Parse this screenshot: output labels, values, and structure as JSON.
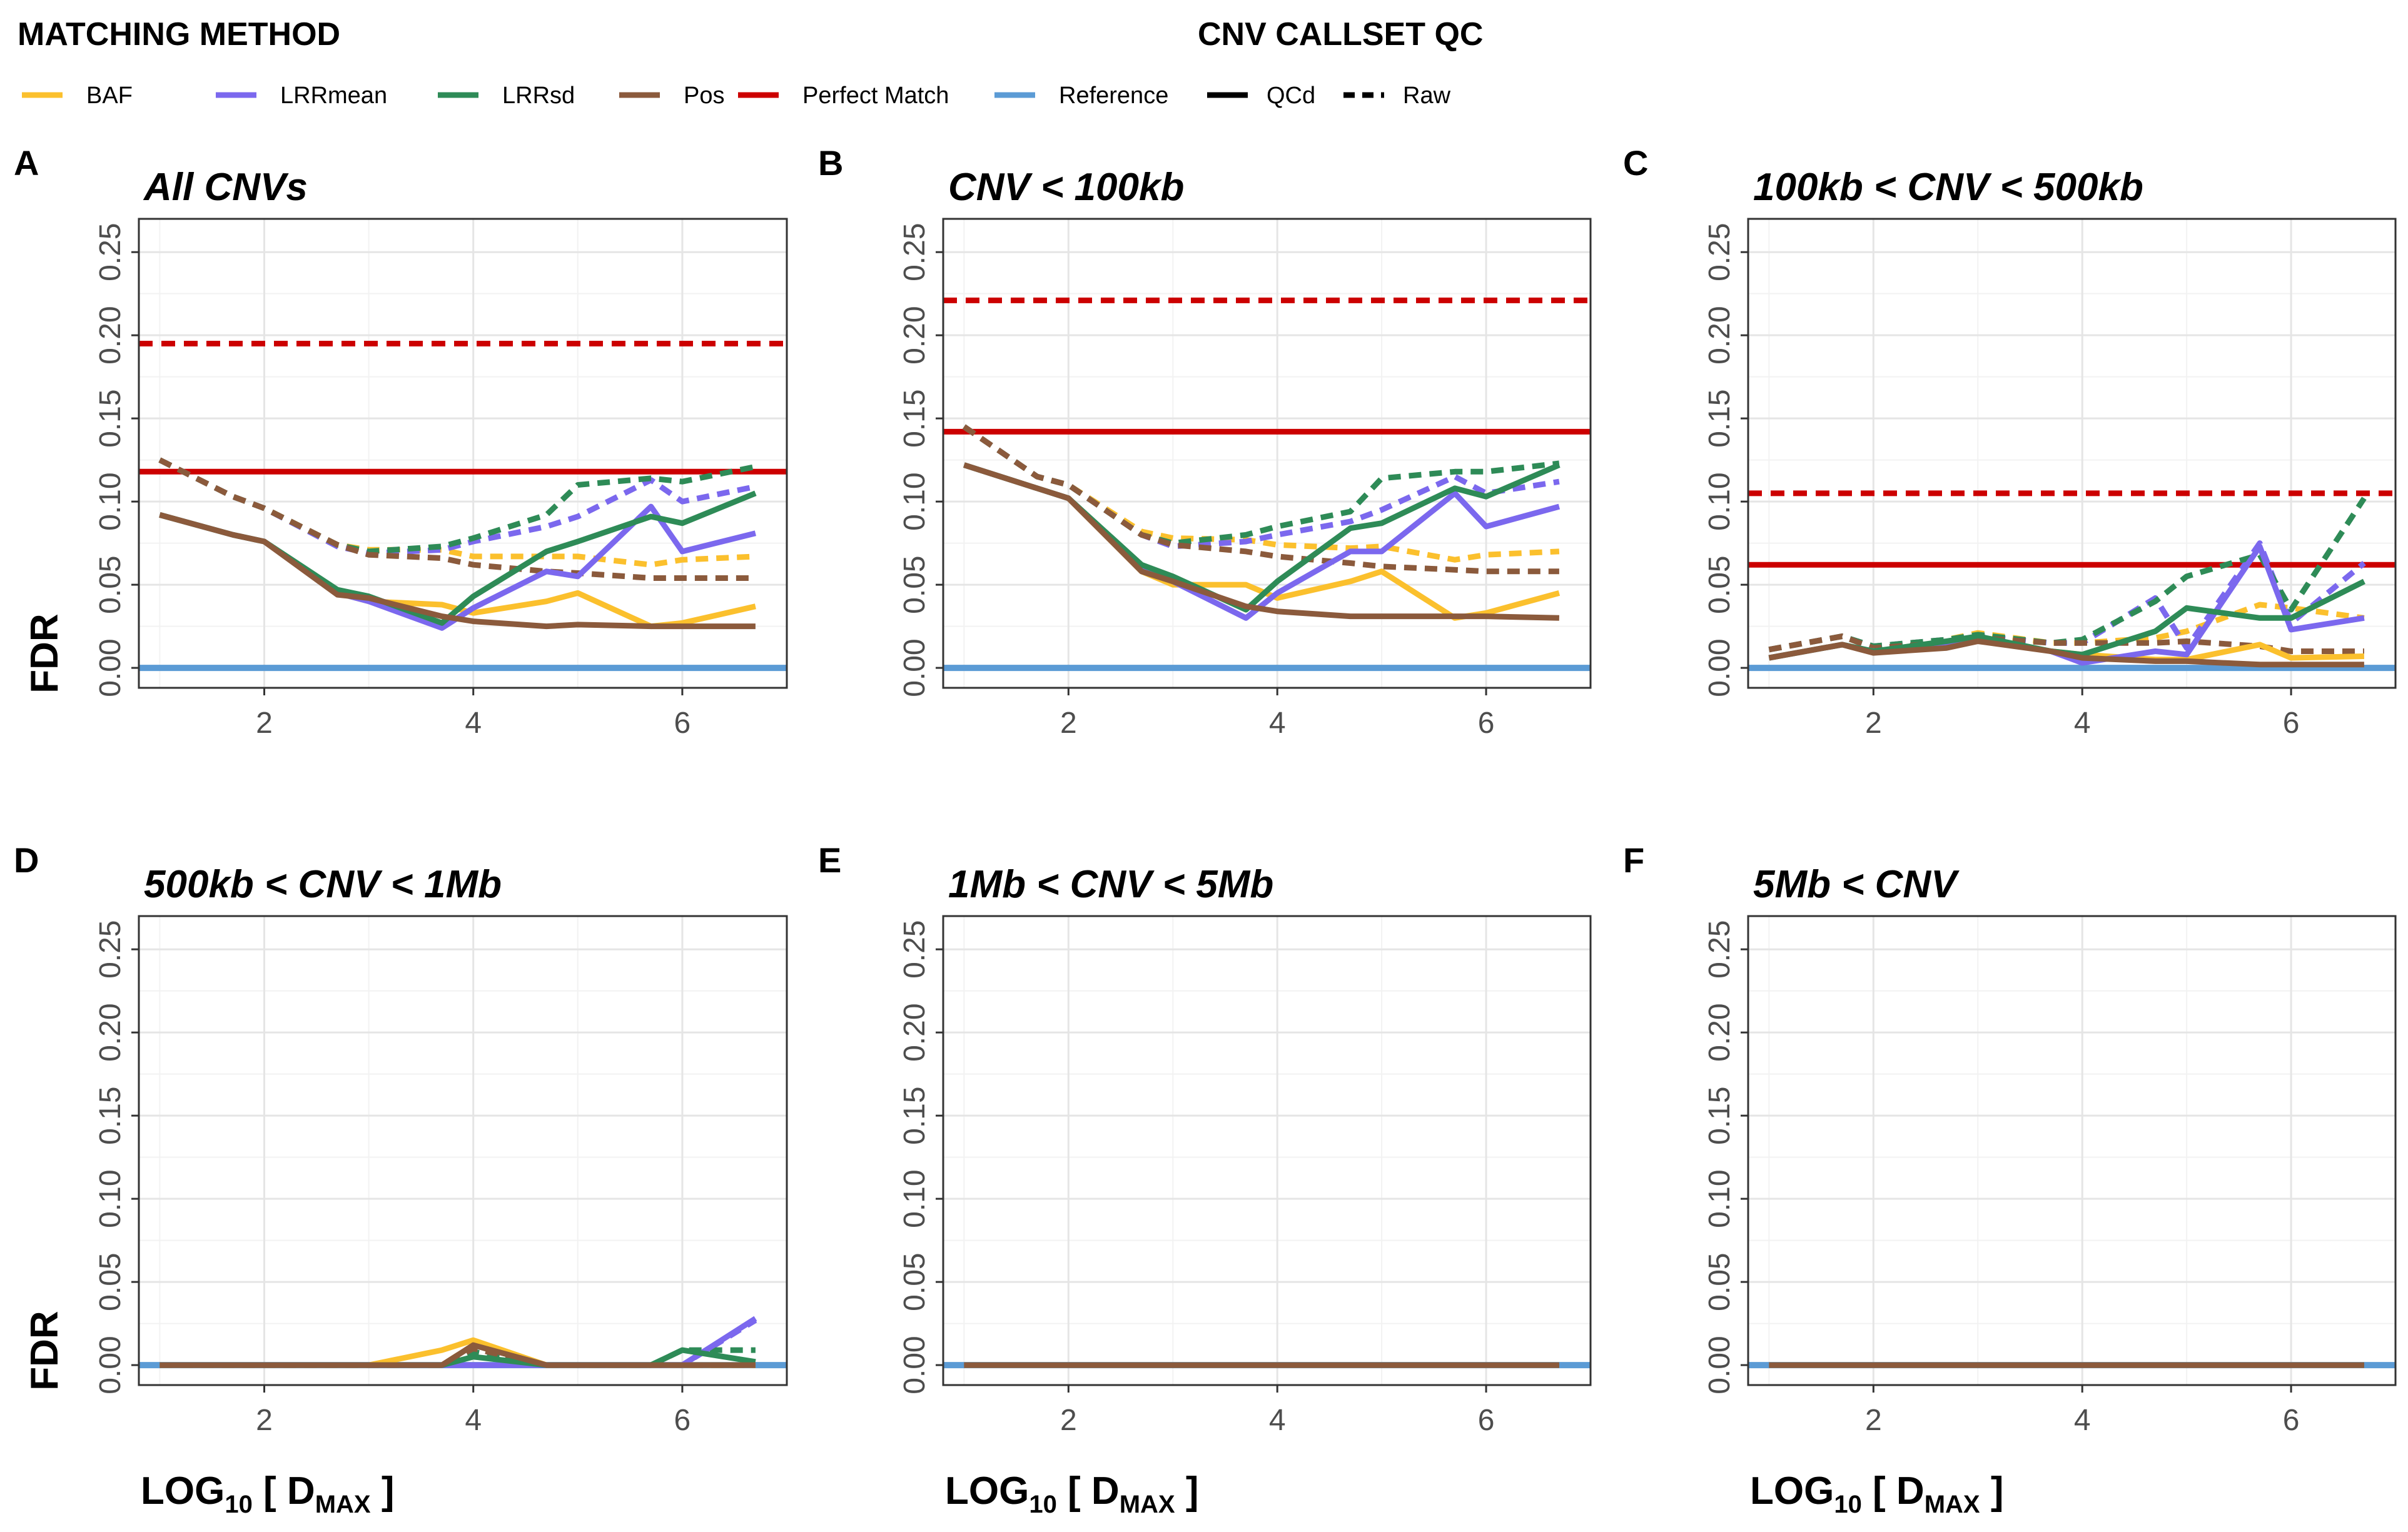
{
  "legend": {
    "method_title": "MATCHING METHOD",
    "qc_title": "CNV CALLSET QC",
    "methods": [
      {
        "label": "BAF",
        "color": "#FBC02D"
      },
      {
        "label": "LRRmean",
        "color": "#7B68EE"
      },
      {
        "label": "LRRsd",
        "color": "#2E8B57"
      },
      {
        "label": "Pos",
        "color": "#8B5A3C"
      },
      {
        "label": "Perfect Match",
        "color": "#CC0000"
      },
      {
        "label": "Reference",
        "color": "#5B9BD5"
      }
    ],
    "qc": [
      {
        "label": "QCd",
        "style": "solid"
      },
      {
        "label": "Raw",
        "style": "dashed"
      }
    ]
  },
  "axis_labels": {
    "ylabel": "FDR",
    "xlabel_main": "LOG",
    "xlabel_sub": "10",
    "xlabel_mid": " [ D",
    "xlabel_sub2": "MAX",
    "xlabel_end": " ]"
  },
  "chart_data": [
    {
      "letter": "A",
      "title": "All CNVs",
      "type": "line",
      "xlim": [
        0.8,
        7.0
      ],
      "ylim": [
        -0.012,
        0.27
      ],
      "xticks": [
        2,
        4,
        6
      ],
      "yticks": [
        0.0,
        0.05,
        0.1,
        0.15,
        0.2,
        0.25
      ],
      "show_ylabel": true,
      "show_xlabel": false,
      "x": [
        1,
        1.7,
        2,
        2.7,
        3,
        3.7,
        4,
        4.7,
        5,
        5.7,
        6,
        6.7
      ],
      "perfect_match": {
        "qcd": 0.118,
        "raw": 0.195
      },
      "reference": 0.0,
      "series": [
        {
          "method": "BAF",
          "qc": "QCd",
          "values": [
            0.092,
            0.08,
            0.076,
            0.045,
            0.04,
            0.038,
            0.033,
            0.04,
            0.045,
            0.025,
            0.027,
            0.037
          ]
        },
        {
          "method": "BAF",
          "qc": "Raw",
          "values": [
            0.125,
            0.103,
            0.096,
            0.074,
            0.071,
            0.071,
            0.067,
            0.067,
            0.067,
            0.062,
            0.065,
            0.067
          ]
        },
        {
          "method": "LRRmean",
          "qc": "QCd",
          "values": [
            0.092,
            0.08,
            0.076,
            0.045,
            0.04,
            0.024,
            0.036,
            0.058,
            0.055,
            0.097,
            0.07,
            0.081
          ]
        },
        {
          "method": "LRRmean",
          "qc": "Raw",
          "values": [
            0.125,
            0.103,
            0.096,
            0.073,
            0.069,
            0.071,
            0.076,
            0.085,
            0.091,
            0.113,
            0.1,
            0.109
          ]
        },
        {
          "method": "LRRsd",
          "qc": "QCd",
          "values": [
            0.092,
            0.08,
            0.076,
            0.047,
            0.043,
            0.027,
            0.043,
            0.07,
            0.076,
            0.091,
            0.087,
            0.105
          ]
        },
        {
          "method": "LRRsd",
          "qc": "Raw",
          "values": [
            0.125,
            0.103,
            0.096,
            0.074,
            0.07,
            0.073,
            0.078,
            0.092,
            0.11,
            0.114,
            0.112,
            0.121
          ]
        },
        {
          "method": "Pos",
          "qc": "QCd",
          "values": [
            0.092,
            0.08,
            0.076,
            0.044,
            0.042,
            0.031,
            0.028,
            0.025,
            0.026,
            0.025,
            0.025,
            0.025
          ]
        },
        {
          "method": "Pos",
          "qc": "Raw",
          "values": [
            0.125,
            0.103,
            0.096,
            0.074,
            0.068,
            0.066,
            0.062,
            0.058,
            0.057,
            0.054,
            0.054,
            0.054
          ]
        }
      ]
    },
    {
      "letter": "B",
      "title": "CNV < 100kb",
      "type": "line",
      "xlim": [
        0.8,
        7.0
      ],
      "ylim": [
        -0.012,
        0.27
      ],
      "xticks": [
        2,
        4,
        6
      ],
      "yticks": [
        0.0,
        0.05,
        0.1,
        0.15,
        0.2,
        0.25
      ],
      "show_ylabel": false,
      "show_xlabel": false,
      "x": [
        1,
        1.7,
        2,
        2.7,
        3,
        3.7,
        4,
        4.7,
        5,
        5.7,
        6,
        6.7
      ],
      "perfect_match": {
        "qcd": 0.142,
        "raw": 0.221
      },
      "reference": 0.0,
      "series": [
        {
          "method": "BAF",
          "qc": "QCd",
          "values": [
            0.122,
            0.108,
            0.102,
            0.058,
            0.05,
            0.05,
            0.042,
            0.052,
            0.058,
            0.03,
            0.033,
            0.045
          ]
        },
        {
          "method": "BAF",
          "qc": "Raw",
          "values": [
            0.145,
            0.115,
            0.11,
            0.082,
            0.078,
            0.077,
            0.074,
            0.072,
            0.073,
            0.065,
            0.068,
            0.07
          ]
        },
        {
          "method": "LRRmean",
          "qc": "QCd",
          "values": [
            0.122,
            0.108,
            0.102,
            0.06,
            0.052,
            0.03,
            0.045,
            0.07,
            0.07,
            0.105,
            0.085,
            0.097
          ]
        },
        {
          "method": "LRRmean",
          "qc": "Raw",
          "values": [
            0.145,
            0.115,
            0.11,
            0.08,
            0.073,
            0.076,
            0.08,
            0.088,
            0.095,
            0.115,
            0.105,
            0.112
          ]
        },
        {
          "method": "LRRsd",
          "qc": "QCd",
          "values": [
            0.122,
            0.108,
            0.102,
            0.062,
            0.055,
            0.035,
            0.052,
            0.084,
            0.087,
            0.108,
            0.103,
            0.122
          ]
        },
        {
          "method": "LRRsd",
          "qc": "Raw",
          "values": [
            0.145,
            0.115,
            0.11,
            0.08,
            0.075,
            0.08,
            0.085,
            0.094,
            0.114,
            0.118,
            0.118,
            0.123
          ]
        },
        {
          "method": "Pos",
          "qc": "QCd",
          "values": [
            0.122,
            0.108,
            0.102,
            0.058,
            0.052,
            0.037,
            0.034,
            0.031,
            0.031,
            0.031,
            0.031,
            0.03
          ]
        },
        {
          "method": "Pos",
          "qc": "Raw",
          "values": [
            0.145,
            0.115,
            0.11,
            0.08,
            0.074,
            0.07,
            0.067,
            0.063,
            0.061,
            0.059,
            0.058,
            0.058
          ]
        }
      ]
    },
    {
      "letter": "C",
      "title": "100kb < CNV < 500kb",
      "type": "line",
      "xlim": [
        0.8,
        7.0
      ],
      "ylim": [
        -0.012,
        0.27
      ],
      "xticks": [
        2,
        4,
        6
      ],
      "yticks": [
        0.0,
        0.05,
        0.1,
        0.15,
        0.2,
        0.25
      ],
      "show_ylabel": false,
      "show_xlabel": false,
      "x": [
        1,
        1.7,
        2,
        2.7,
        3,
        3.7,
        4,
        4.7,
        5,
        5.7,
        6,
        6.7
      ],
      "perfect_match": {
        "qcd": 0.062,
        "raw": 0.105
      },
      "reference": 0.0,
      "series": [
        {
          "method": "BAF",
          "qc": "QCd",
          "values": [
            0.006,
            0.014,
            0.01,
            0.015,
            0.018,
            0.01,
            0.008,
            0.005,
            0.005,
            0.014,
            0.006,
            0.007
          ]
        },
        {
          "method": "BAF",
          "qc": "Raw",
          "values": [
            0.011,
            0.019,
            0.013,
            0.017,
            0.021,
            0.015,
            0.015,
            0.018,
            0.022,
            0.038,
            0.036,
            0.03
          ]
        },
        {
          "method": "LRRmean",
          "qc": "QCd",
          "values": [
            0.006,
            0.014,
            0.01,
            0.015,
            0.018,
            0.01,
            0.003,
            0.01,
            0.008,
            0.073,
            0.023,
            0.03
          ]
        },
        {
          "method": "LRRmean",
          "qc": "Raw",
          "values": [
            0.011,
            0.019,
            0.013,
            0.017,
            0.019,
            0.015,
            0.015,
            0.042,
            0.012,
            0.075,
            0.027,
            0.063
          ]
        },
        {
          "method": "LRRsd",
          "qc": "QCd",
          "values": [
            0.006,
            0.014,
            0.01,
            0.016,
            0.019,
            0.01,
            0.008,
            0.022,
            0.036,
            0.03,
            0.03,
            0.052
          ]
        },
        {
          "method": "LRRsd",
          "qc": "Raw",
          "values": [
            0.011,
            0.019,
            0.013,
            0.017,
            0.02,
            0.015,
            0.017,
            0.04,
            0.055,
            0.068,
            0.035,
            0.102
          ]
        },
        {
          "method": "Pos",
          "qc": "QCd",
          "values": [
            0.006,
            0.014,
            0.009,
            0.012,
            0.016,
            0.01,
            0.006,
            0.004,
            0.004,
            0.002,
            0.002,
            0.002
          ]
        },
        {
          "method": "Pos",
          "qc": "Raw",
          "values": [
            0.011,
            0.019,
            0.012,
            0.015,
            0.018,
            0.015,
            0.015,
            0.015,
            0.016,
            0.013,
            0.01,
            0.01
          ]
        }
      ]
    },
    {
      "letter": "D",
      "title": "500kb < CNV < 1Mb",
      "type": "line",
      "xlim": [
        0.8,
        7.0
      ],
      "ylim": [
        -0.012,
        0.27
      ],
      "xticks": [
        2,
        4,
        6
      ],
      "yticks": [
        0.0,
        0.05,
        0.1,
        0.15,
        0.2,
        0.25
      ],
      "show_ylabel": true,
      "show_xlabel": true,
      "x": [
        1,
        1.7,
        2,
        2.7,
        3,
        3.7,
        4,
        4.7,
        5,
        5.7,
        6,
        6.7
      ],
      "perfect_match": null,
      "reference": 0.0,
      "series": [
        {
          "method": "BAF",
          "qc": "QCd",
          "values": [
            0,
            0,
            0,
            0,
            0,
            0.009,
            0.015,
            0,
            0,
            0,
            0,
            0
          ]
        },
        {
          "method": "BAF",
          "qc": "Raw",
          "values": [
            0,
            0,
            0,
            0,
            0,
            0,
            0.012,
            0,
            0,
            0,
            0,
            0
          ]
        },
        {
          "method": "LRRmean",
          "qc": "QCd",
          "values": [
            0,
            0,
            0,
            0,
            0,
            0,
            0,
            0,
            0,
            0,
            0,
            0.028
          ]
        },
        {
          "method": "LRRmean",
          "qc": "Raw",
          "values": [
            0,
            0,
            0,
            0,
            0,
            0,
            0,
            0,
            0,
            0,
            0,
            0.027
          ]
        },
        {
          "method": "LRRsd",
          "qc": "QCd",
          "values": [
            0,
            0,
            0,
            0,
            0,
            0,
            0.005,
            0,
            0,
            0,
            0.009,
            0.002
          ]
        },
        {
          "method": "LRRsd",
          "qc": "Raw",
          "values": [
            0,
            0,
            0,
            0,
            0,
            0,
            0.008,
            0,
            0,
            0,
            0.009,
            0.009
          ]
        },
        {
          "method": "Pos",
          "qc": "QCd",
          "values": [
            0,
            0,
            0,
            0,
            0,
            0,
            0.012,
            0,
            0,
            0,
            0,
            0
          ]
        },
        {
          "method": "Pos",
          "qc": "Raw",
          "values": [
            0,
            0,
            0,
            0,
            0,
            0,
            0.01,
            0,
            0,
            0,
            0,
            0
          ]
        }
      ]
    },
    {
      "letter": "E",
      "title": "1Mb < CNV < 5Mb",
      "type": "line",
      "xlim": [
        0.8,
        7.0
      ],
      "ylim": [
        -0.012,
        0.27
      ],
      "xticks": [
        2,
        4,
        6
      ],
      "yticks": [
        0.0,
        0.05,
        0.1,
        0.15,
        0.2,
        0.25
      ],
      "show_ylabel": false,
      "show_xlabel": true,
      "x": [
        1,
        1.7,
        2,
        2.7,
        3,
        3.7,
        4,
        4.7,
        5,
        5.7,
        6,
        6.7
      ],
      "perfect_match": null,
      "reference": 0.0,
      "series": [
        {
          "method": "BAF",
          "qc": "QCd",
          "values": [
            0,
            0,
            0,
            0,
            0,
            0,
            0,
            0,
            0,
            0,
            0,
            0
          ]
        },
        {
          "method": "LRRmean",
          "qc": "QCd",
          "values": [
            0,
            0,
            0,
            0,
            0,
            0,
            0,
            0,
            0,
            0,
            0,
            0
          ]
        },
        {
          "method": "LRRsd",
          "qc": "QCd",
          "values": [
            0,
            0,
            0,
            0,
            0,
            0,
            0,
            0,
            0,
            0,
            0,
            0
          ]
        },
        {
          "method": "Pos",
          "qc": "QCd",
          "values": [
            0,
            0,
            0,
            0,
            0,
            0,
            0,
            0,
            0,
            0,
            0,
            0
          ]
        }
      ]
    },
    {
      "letter": "F",
      "title": "5Mb < CNV",
      "type": "line",
      "xlim": [
        0.8,
        7.0
      ],
      "ylim": [
        -0.012,
        0.27
      ],
      "xticks": [
        2,
        4,
        6
      ],
      "yticks": [
        0.0,
        0.05,
        0.1,
        0.15,
        0.2,
        0.25
      ],
      "show_ylabel": false,
      "show_xlabel": true,
      "x": [
        1,
        1.7,
        2,
        2.7,
        3,
        3.7,
        4,
        4.7,
        5,
        5.7,
        6,
        6.7
      ],
      "perfect_match": null,
      "reference": 0.0,
      "series": [
        {
          "method": "BAF",
          "qc": "QCd",
          "values": [
            0,
            0,
            0,
            0,
            0,
            0,
            0,
            0,
            0,
            0,
            0,
            0
          ]
        },
        {
          "method": "LRRmean",
          "qc": "QCd",
          "values": [
            0,
            0,
            0,
            0,
            0,
            0,
            0,
            0,
            0,
            0,
            0,
            0
          ]
        },
        {
          "method": "LRRsd",
          "qc": "QCd",
          "values": [
            0,
            0,
            0,
            0,
            0,
            0,
            0,
            0,
            0,
            0,
            0,
            0
          ]
        },
        {
          "method": "Pos",
          "qc": "QCd",
          "values": [
            0,
            0,
            0,
            0,
            0,
            0,
            0,
            0,
            0,
            0,
            0,
            0
          ]
        }
      ]
    }
  ]
}
